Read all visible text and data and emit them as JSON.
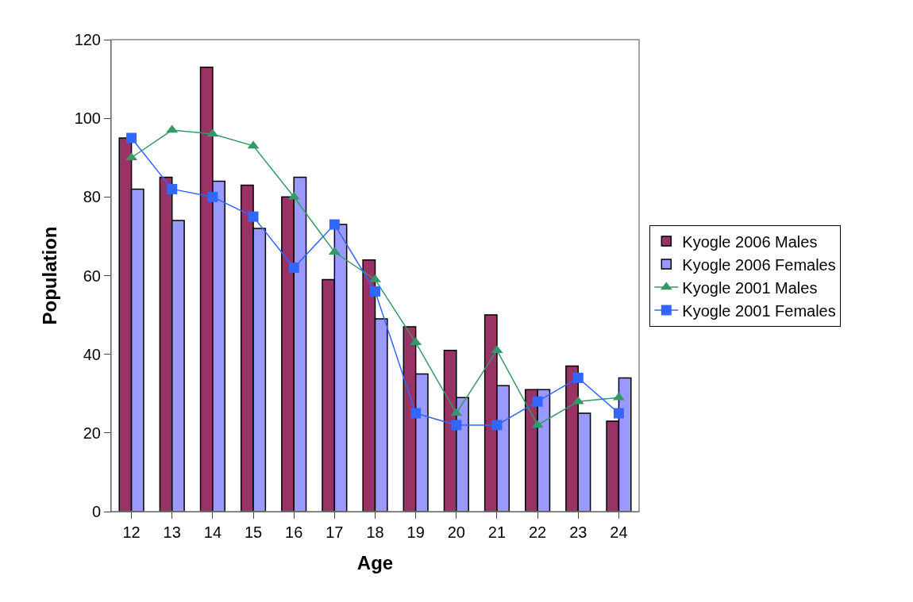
{
  "chart_data": {
    "type": "bar",
    "xlabel": "Age",
    "ylabel": "Population",
    "categories": [
      "12",
      "13",
      "14",
      "15",
      "16",
      "17",
      "18",
      "19",
      "20",
      "21",
      "22",
      "23",
      "24"
    ],
    "series": [
      {
        "name": "Kyogle 2006 Males",
        "color": "#993366",
        "values": [
          95,
          85,
          113,
          83,
          80,
          59,
          64,
          47,
          41,
          50,
          31,
          37,
          23
        ]
      },
      {
        "name": "Kyogle 2006 Females",
        "color": "#9999ff",
        "values": [
          82,
          74,
          84,
          72,
          85,
          73,
          49,
          35,
          29,
          32,
          31,
          25,
          34
        ]
      },
      {
        "name": "Kyogle 2001 Males",
        "type": "line",
        "marker": "triangle",
        "color": "#339966",
        "values": [
          90,
          97,
          96,
          93,
          80,
          66,
          59,
          43,
          25,
          41,
          22,
          28,
          29
        ]
      },
      {
        "name": "Kyogle 2001 Females",
        "type": "line",
        "marker": "square",
        "color": "#3366ff",
        "values": [
          95,
          82,
          80,
          75,
          62,
          73,
          56,
          25,
          22,
          22,
          28,
          34,
          25
        ]
      }
    ],
    "ylim": [
      0,
      120
    ],
    "yticks": [
      0,
      20,
      40,
      60,
      80,
      100,
      120
    ],
    "grid": false,
    "legend": "right"
  }
}
